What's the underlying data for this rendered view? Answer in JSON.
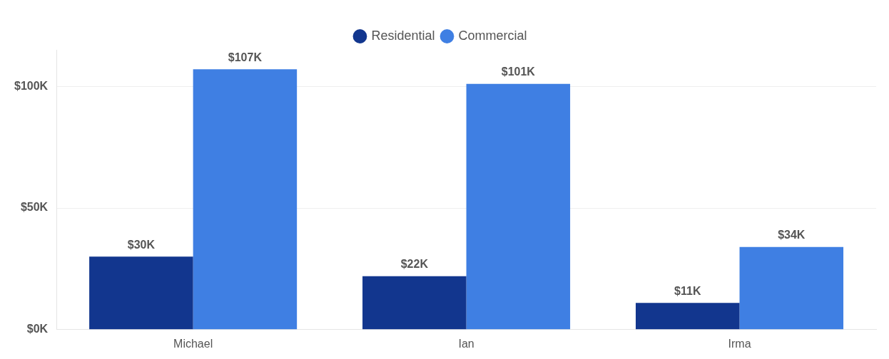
{
  "chart_data": {
    "type": "bar",
    "categories": [
      "Michael",
      "Ian",
      "Irma"
    ],
    "series": [
      {
        "name": "Residential",
        "color": "#12368e",
        "values": [
          30,
          22,
          11
        ],
        "value_labels": [
          "$30K",
          "$22K",
          "$11K"
        ]
      },
      {
        "name": "Commercial",
        "color": "#3f7fe3",
        "values": [
          107,
          101,
          34
        ],
        "value_labels": [
          "$107K",
          "$101K",
          "$34K"
        ]
      }
    ],
    "ylim": [
      0,
      115
    ],
    "yticks": [
      {
        "value": 0,
        "label": "$0K"
      },
      {
        "value": 50,
        "label": "$50K"
      },
      {
        "value": 100,
        "label": "$100K"
      }
    ],
    "grid": "y",
    "legend": "top",
    "marker": "circle"
  }
}
